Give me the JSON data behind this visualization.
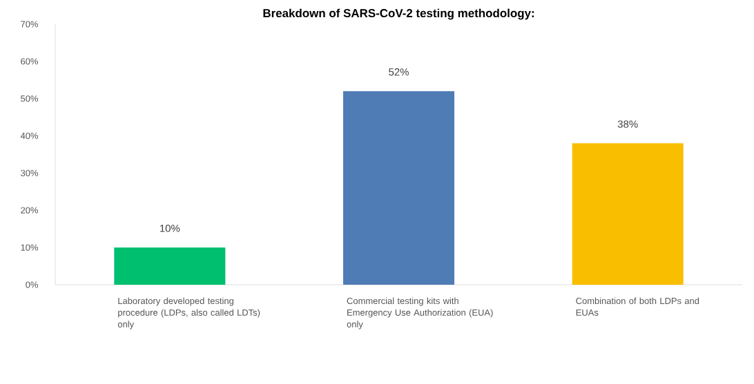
{
  "chart_data": {
    "type": "bar",
    "title": "Breakdown of SARS-CoV-2 testing  methodology:",
    "categories": [
      "Laboratory developed testing procedure (LDPs, also called LDTs) only",
      "Commercial testing kits with Emergency Use Authorization (EUA) only",
      "Combination of both LDPs and EUAs"
    ],
    "values": [
      10,
      52,
      38
    ],
    "colors": [
      "#00bf6f",
      "#507cb6",
      "#f9be00"
    ],
    "value_labels": [
      "10%",
      "52%",
      "38%"
    ],
    "ylim": [
      0,
      70
    ],
    "yticks": [
      {
        "value": 0,
        "label": "0%"
      },
      {
        "value": 10,
        "label": "10%"
      },
      {
        "value": 20,
        "label": "20%"
      },
      {
        "value": 30,
        "label": "30%"
      },
      {
        "value": 40,
        "label": "40%"
      },
      {
        "value": 50,
        "label": "50%"
      },
      {
        "value": 60,
        "label": "60%"
      },
      {
        "value": 70,
        "label": "70%"
      }
    ],
    "grid": false
  }
}
